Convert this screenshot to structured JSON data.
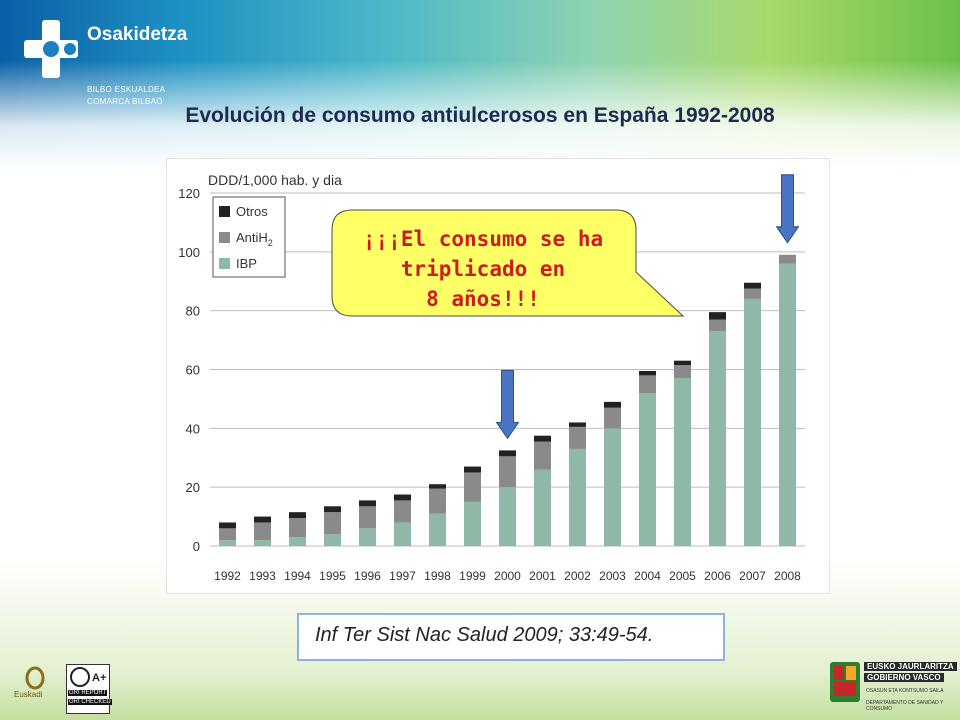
{
  "header": {
    "brand": "Osakidetza",
    "sub_line1": "BILBO ESKUALDEA",
    "sub_line2": "COMARCA BILBAO"
  },
  "title": "Evolución de consumo antiulcerosos en España 1992-2008",
  "chart_data": {
    "type": "bar",
    "stacked": true,
    "ylabel": "DDD/1,000 hab. y dia",
    "ylim": [
      0,
      120
    ],
    "yticks": [
      0,
      20,
      40,
      60,
      80,
      100,
      120
    ],
    "grid": true,
    "legend_position": "top-left",
    "categories": [
      "1992",
      "1993",
      "1994",
      "1995",
      "1996",
      "1997",
      "1998",
      "1999",
      "2000",
      "2001",
      "2002",
      "2003",
      "2004",
      "2005",
      "2006",
      "2007",
      "2008"
    ],
    "series": [
      {
        "name": "IBP",
        "color": "#8fb9a6",
        "values": [
          2,
          2,
          3,
          4,
          6,
          8,
          11,
          15,
          20,
          26,
          33,
          40,
          52,
          57,
          73,
          84,
          96
        ]
      },
      {
        "name": "AntiH2",
        "color": "#8a8a8a",
        "values": [
          4,
          6,
          6.5,
          7.5,
          7.5,
          7.5,
          8.5,
          10,
          10.5,
          9.5,
          7.5,
          7,
          6,
          4.5,
          4,
          3.5,
          3
        ]
      },
      {
        "name": "Otros",
        "color": "#222222",
        "values": [
          2,
          2,
          2,
          2,
          2,
          2,
          1.5,
          2,
          2,
          2,
          1.5,
          2,
          1.5,
          1.5,
          2.5,
          2,
          0
        ]
      }
    ],
    "legend_labels": {
      "otros": "Otros",
      "antih": "AntiH",
      "antih_sub": "2",
      "ibp": "IBP"
    },
    "annotation": {
      "text_line1": "¡¡¡El consumo se ha",
      "text_line2": "triplicado en",
      "text_line3": "8 años!!!",
      "text_color": "#cc1d1d",
      "fill": "#ffff66"
    },
    "arrows": [
      "2000",
      "2008"
    ],
    "arrow_color": "#4a74c4"
  },
  "citation": "Inf Ter Sist Nac Salud 2009; 33:49-54.",
  "footer": {
    "euskadi_label": "Euskadi",
    "gri_line1": "GRI REPORT",
    "gri_line2": "GRI CHECKED",
    "gri_badge": "A+",
    "gov_line1": "EUSKO JAURLARITZA",
    "gov_line2": "GOBIERNO VASCO",
    "gov_line3": "OSASUN ETA KONTSUMO SAILA",
    "gov_line4": "DEPARTAMENTO DE SANIDAD Y CONSUMO"
  }
}
